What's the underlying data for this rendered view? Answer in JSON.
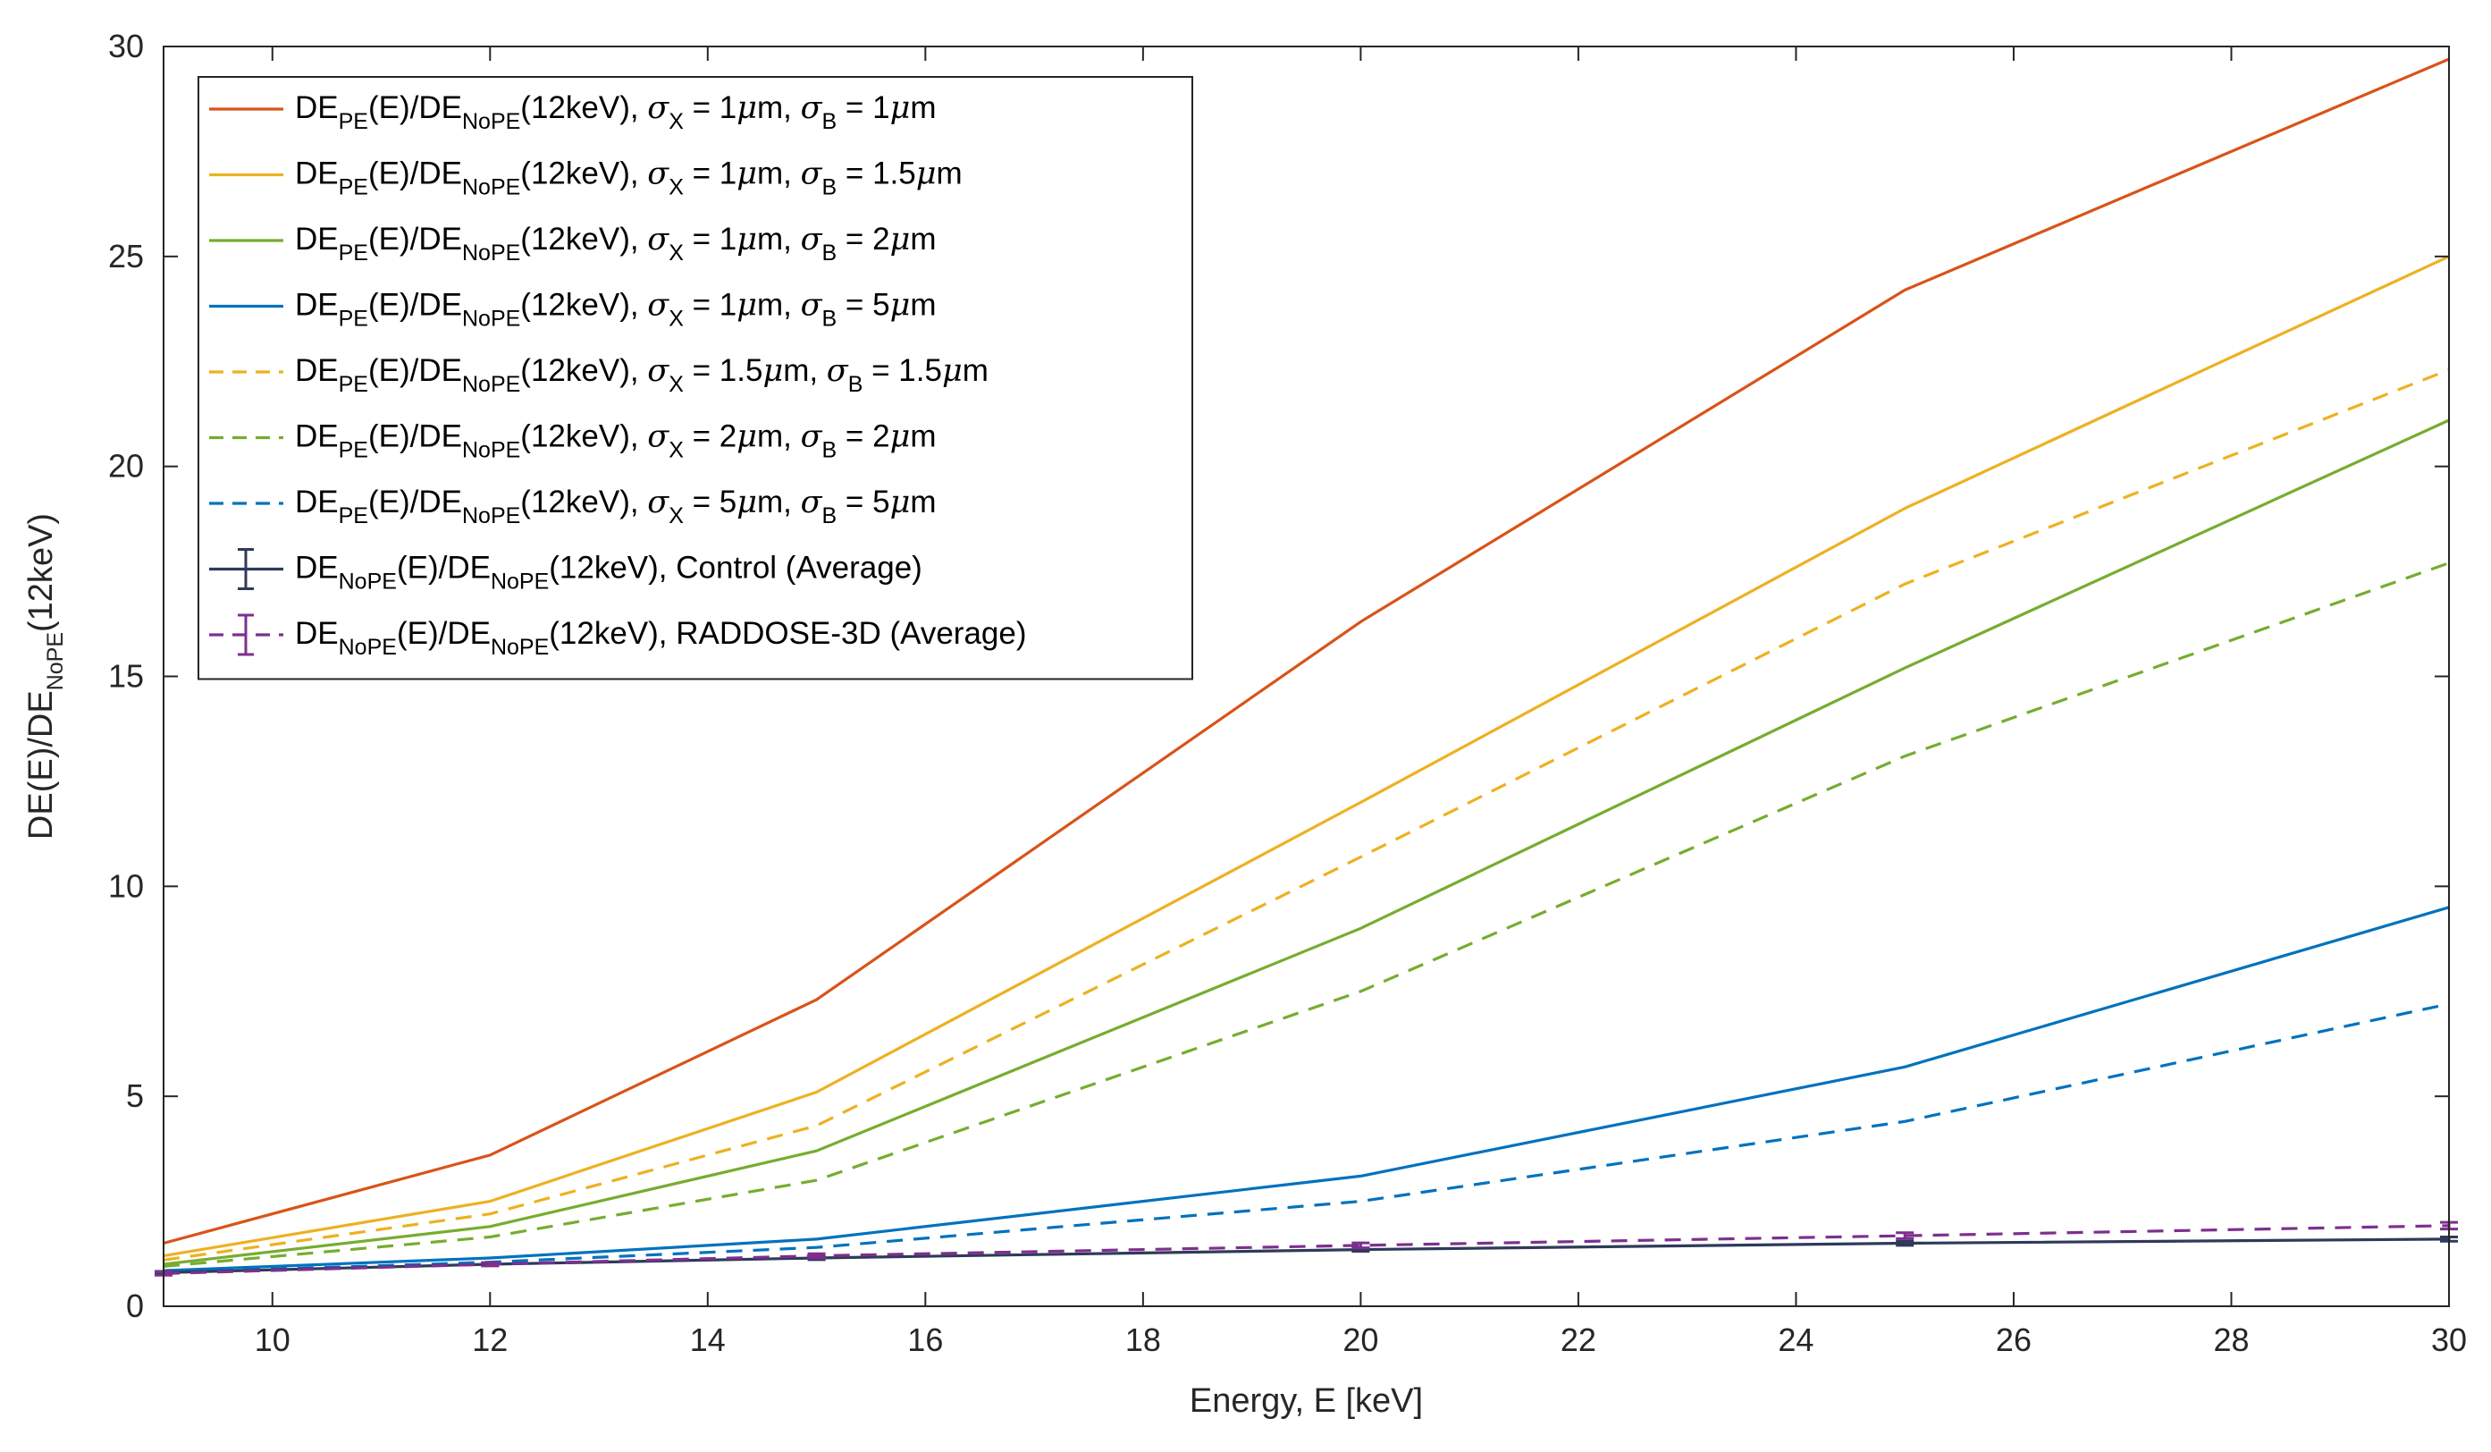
{
  "chart_data": {
    "type": "line",
    "title": "",
    "xlabel": "Energy, E [keV]",
    "ylabel": {
      "main": "DE(E)/DE",
      "sub": "NoPE",
      "tail": "(12keV)"
    },
    "xlim": [
      9,
      30
    ],
    "ylim": [
      0,
      30
    ],
    "xticks": [
      10,
      12,
      14,
      16,
      18,
      20,
      22,
      24,
      26,
      28,
      30
    ],
    "yticks": [
      0,
      5,
      10,
      15,
      20,
      25,
      30
    ],
    "grid": false,
    "legend_position": "top-left",
    "x": [
      9,
      12,
      15,
      20,
      25,
      30
    ],
    "series": [
      {
        "label": {
          "de": "DE",
          "sub1": "PE",
          "mid": "(E)/DE",
          "sub2": "NoPE",
          "rest1": "(12keV), ",
          "s1": "σ",
          "s1sub": "X",
          "eq1": " = 1",
          "mu1": "μ",
          "m1": "m, ",
          "s2": "σ",
          "s2sub": "B",
          "eq2": " = 1",
          "mu2": "μ",
          "m2": "m"
        },
        "color": "#D95319",
        "dashed": false,
        "values": [
          1.5,
          3.6,
          7.3,
          16.3,
          24.2,
          29.7
        ]
      },
      {
        "label": {
          "de": "DE",
          "sub1": "PE",
          "mid": "(E)/DE",
          "sub2": "NoPE",
          "rest1": "(12keV), ",
          "s1": "σ",
          "s1sub": "X",
          "eq1": " = 1",
          "mu1": "μ",
          "m1": "m, ",
          "s2": "σ",
          "s2sub": "B",
          "eq2": " = 1.5",
          "mu2": "μ",
          "m2": "m"
        },
        "color": "#EDB120",
        "dashed": false,
        "values": [
          1.2,
          2.5,
          5.1,
          12.0,
          19.0,
          25.0
        ]
      },
      {
        "label": {
          "de": "DE",
          "sub1": "PE",
          "mid": "(E)/DE",
          "sub2": "NoPE",
          "rest1": "(12keV), ",
          "s1": "σ",
          "s1sub": "X",
          "eq1": " = 1",
          "mu1": "μ",
          "m1": "m, ",
          "s2": "σ",
          "s2sub": "B",
          "eq2": " = 2",
          "mu2": "μ",
          "m2": "m"
        },
        "color": "#77AC30",
        "dashed": false,
        "values": [
          1.0,
          1.9,
          3.7,
          9.0,
          15.2,
          21.1
        ]
      },
      {
        "label": {
          "de": "DE",
          "sub1": "PE",
          "mid": "(E)/DE",
          "sub2": "NoPE",
          "rest1": "(12keV), ",
          "s1": "σ",
          "s1sub": "X",
          "eq1": " = 1",
          "mu1": "μ",
          "m1": "m, ",
          "s2": "σ",
          "s2sub": "B",
          "eq2": " = 5",
          "mu2": "μ",
          "m2": "m"
        },
        "color": "#0072BD",
        "dashed": false,
        "values": [
          0.85,
          1.15,
          1.6,
          3.1,
          5.7,
          9.5
        ]
      },
      {
        "label": {
          "de": "DE",
          "sub1": "PE",
          "mid": "(E)/DE",
          "sub2": "NoPE",
          "rest1": "(12keV), ",
          "s1": "σ",
          "s1sub": "X",
          "eq1": " = 1.5",
          "mu1": "μ",
          "m1": "m, ",
          "s2": "σ",
          "s2sub": "B",
          "eq2": " = 1.5",
          "mu2": "μ",
          "m2": "m"
        },
        "color": "#EDB120",
        "dashed": true,
        "values": [
          1.1,
          2.2,
          4.3,
          10.7,
          17.2,
          22.3
        ]
      },
      {
        "label": {
          "de": "DE",
          "sub1": "PE",
          "mid": "(E)/DE",
          "sub2": "NoPE",
          "rest1": "(12keV), ",
          "s1": "σ",
          "s1sub": "X",
          "eq1": " = 2",
          "mu1": "μ",
          "m1": "m, ",
          "s2": "σ",
          "s2sub": "B",
          "eq2": " = 2",
          "mu2": "μ",
          "m2": "m"
        },
        "color": "#77AC30",
        "dashed": true,
        "values": [
          0.95,
          1.65,
          3.0,
          7.5,
          13.1,
          17.7
        ]
      },
      {
        "label": {
          "de": "DE",
          "sub1": "PE",
          "mid": "(E)/DE",
          "sub2": "NoPE",
          "rest1": "(12keV), ",
          "s1": "σ",
          "s1sub": "X",
          "eq1": " = 5",
          "mu1": "μ",
          "m1": "m, ",
          "s2": "σ",
          "s2sub": "B",
          "eq2": " = 5",
          "mu2": "μ",
          "m2": "m"
        },
        "color": "#0072BD",
        "dashed": true,
        "values": [
          0.8,
          1.05,
          1.4,
          2.5,
          4.4,
          7.2
        ]
      },
      {
        "label": {
          "de": "DE",
          "sub1": "NoPE",
          "mid": "(E)/DE",
          "sub2": "NoPE",
          "rest1": "(12keV), Control (Average)"
        },
        "color": "#2F3A5A",
        "dashed": false,
        "errorbars": true,
        "values": [
          0.8,
          1.0,
          1.15,
          1.35,
          1.5,
          1.6
        ],
        "errors": [
          0.03,
          0.03,
          0.04,
          0.04,
          0.05,
          0.05
        ]
      },
      {
        "label": {
          "de": "DE",
          "sub1": "NoPE",
          "mid": "(E)/DE",
          "sub2": "NoPE",
          "rest1": "(12keV), RADDOSE-3D (Average)"
        },
        "color": "#7E2F8E",
        "dashed": true,
        "errorbars": true,
        "values": [
          0.78,
          1.0,
          1.2,
          1.45,
          1.68,
          1.92
        ],
        "errors": [
          0.04,
          0.04,
          0.05,
          0.06,
          0.07,
          0.08
        ]
      }
    ]
  }
}
